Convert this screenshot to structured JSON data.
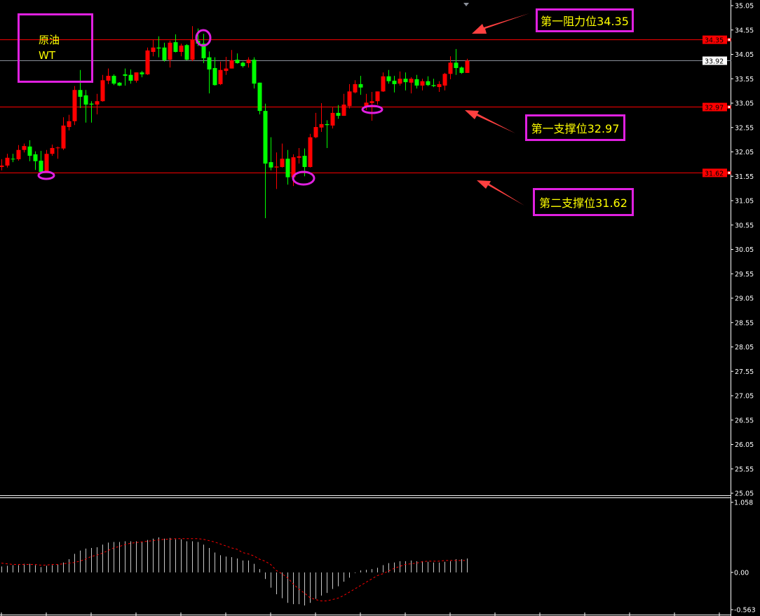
{
  "symbol_label": {
    "line1": "原油",
    "line2": "WT"
  },
  "colors": {
    "up": "#ff0000",
    "down": "#00ff00",
    "background": "#000000",
    "axis": "#ffffff",
    "level_line": "#ff0000",
    "current_line": "#8a8f99",
    "annotation_border": "#e020e0",
    "annotation_text": "#ffff00",
    "arrow": "#ff4040",
    "macd_hist": "#c8c8c8",
    "macd_signal": "#ff0000"
  },
  "annotations": [
    {
      "text": "第一阻力位34.35",
      "level": 34.35
    },
    {
      "text": "第一支撑位32.97",
      "level": 32.97
    },
    {
      "text": "第二支撑位31.62",
      "level": 31.62
    }
  ],
  "chart_data": [
    {
      "type": "candlestick",
      "ylim": [
        25.05,
        35.05
      ],
      "price_ticks": [
        "35.05",
        "34.55",
        "34.05",
        "33.55",
        "33.05",
        "32.55",
        "32.05",
        "31.55",
        "31.05",
        "30.55",
        "30.05",
        "29.55",
        "29.05",
        "28.55",
        "28.05",
        "27.55",
        "27.05",
        "26.55",
        "26.05",
        "25.55",
        "25.05"
      ],
      "current_price": {
        "value": 33.92,
        "label": "33.92"
      },
      "level_lines": [
        {
          "value": 34.35,
          "label": "34.35"
        },
        {
          "value": 32.97,
          "label": "32.97"
        },
        {
          "value": 31.62,
          "label": "31.62"
        }
      ],
      "ohlc_fields": [
        "open",
        "high",
        "low",
        "close"
      ],
      "candles": [
        [
          31.74,
          31.9,
          31.67,
          31.77
        ],
        [
          31.77,
          32.01,
          31.73,
          31.93
        ],
        [
          31.91,
          32.01,
          31.84,
          31.9
        ],
        [
          31.9,
          32.19,
          31.87,
          32.09
        ],
        [
          32.09,
          32.22,
          32.04,
          32.17
        ],
        [
          32.16,
          32.29,
          31.86,
          31.97
        ],
        [
          32.0,
          32.06,
          31.68,
          31.86
        ],
        [
          31.87,
          32.07,
          31.61,
          31.64
        ],
        [
          31.64,
          32.09,
          31.63,
          32.01
        ],
        [
          32.01,
          32.2,
          31.97,
          32.13
        ],
        [
          32.13,
          32.16,
          31.91,
          32.14
        ],
        [
          32.12,
          32.76,
          32.09,
          32.59
        ],
        [
          32.56,
          32.81,
          32.49,
          32.68
        ],
        [
          32.68,
          33.4,
          32.6,
          33.32
        ],
        [
          33.32,
          33.73,
          32.95,
          33.18
        ],
        [
          33.21,
          33.32,
          32.65,
          33.02
        ],
        [
          33.04,
          33.09,
          32.65,
          33.02
        ],
        [
          33.02,
          33.24,
          32.82,
          33.09
        ],
        [
          33.09,
          33.63,
          33.08,
          33.52
        ],
        [
          33.51,
          33.76,
          33.44,
          33.61
        ],
        [
          33.61,
          33.64,
          33.42,
          33.45
        ],
        [
          33.47,
          33.48,
          33.4,
          33.41
        ],
        [
          33.64,
          33.76,
          33.41,
          33.61
        ],
        [
          33.63,
          33.74,
          33.45,
          33.51
        ],
        [
          33.51,
          33.68,
          33.47,
          33.68
        ],
        [
          33.68,
          33.71,
          33.58,
          33.64
        ],
        [
          33.64,
          34.19,
          33.63,
          34.13
        ],
        [
          34.1,
          34.35,
          34.01,
          34.19
        ],
        [
          34.19,
          34.42,
          33.99,
          34.17
        ],
        [
          34.19,
          34.29,
          33.9,
          33.93
        ],
        [
          33.94,
          34.33,
          33.78,
          34.29
        ],
        [
          34.3,
          34.46,
          34.09,
          34.1
        ],
        [
          34.1,
          34.27,
          34.01,
          34.23
        ],
        [
          34.24,
          34.26,
          33.93,
          33.94
        ],
        [
          33.94,
          34.63,
          33.91,
          34.35
        ],
        [
          34.33,
          34.58,
          34.22,
          34.27
        ],
        [
          34.27,
          34.47,
          33.87,
          33.97
        ],
        [
          33.99,
          34.11,
          33.25,
          33.74
        ],
        [
          33.77,
          33.99,
          33.41,
          33.42
        ],
        [
          33.44,
          33.9,
          33.42,
          33.73
        ],
        [
          33.71,
          34.0,
          33.63,
          33.76
        ],
        [
          33.76,
          34.14,
          33.76,
          33.93
        ],
        [
          33.94,
          34.07,
          33.86,
          33.87
        ],
        [
          33.88,
          33.9,
          33.78,
          33.81
        ],
        [
          33.87,
          33.99,
          33.78,
          33.94
        ],
        [
          33.94,
          33.99,
          33.35,
          33.45
        ],
        [
          33.47,
          33.47,
          32.82,
          32.89
        ],
        [
          32.89,
          33.04,
          30.69,
          31.81
        ],
        [
          31.84,
          32.35,
          31.67,
          31.73
        ],
        [
          31.73,
          32.04,
          31.29,
          31.75
        ],
        [
          31.74,
          32.22,
          31.73,
          31.91
        ],
        [
          31.91,
          32.09,
          31.38,
          31.53
        ],
        [
          31.53,
          32.0,
          31.35,
          31.94
        ],
        [
          31.93,
          32.13,
          31.81,
          31.96
        ],
        [
          31.97,
          32.12,
          31.55,
          31.74
        ],
        [
          31.74,
          32.42,
          31.73,
          32.35
        ],
        [
          32.35,
          32.85,
          32.33,
          32.56
        ],
        [
          32.55,
          33.05,
          32.46,
          32.62
        ],
        [
          32.62,
          32.7,
          32.13,
          32.6
        ],
        [
          32.59,
          32.96,
          32.53,
          32.85
        ],
        [
          32.85,
          33.01,
          32.73,
          32.79
        ],
        [
          32.79,
          33.24,
          32.79,
          33.02
        ],
        [
          32.99,
          33.44,
          32.94,
          33.29
        ],
        [
          33.27,
          33.52,
          33.25,
          33.44
        ],
        [
          33.44,
          33.61,
          33.22,
          33.37
        ],
        [
          32.98,
          33.24,
          32.91,
          33.06
        ],
        [
          33.05,
          33.28,
          32.69,
          33.09
        ],
        [
          33.09,
          33.29,
          33.02,
          33.29
        ],
        [
          33.29,
          33.68,
          33.28,
          33.6
        ],
        [
          33.6,
          33.73,
          33.45,
          33.5
        ],
        [
          33.51,
          33.61,
          33.27,
          33.44
        ],
        [
          33.45,
          33.7,
          33.41,
          33.55
        ],
        [
          33.55,
          33.68,
          33.31,
          33.48
        ],
        [
          33.47,
          33.58,
          33.25,
          33.55
        ],
        [
          33.54,
          33.63,
          33.35,
          33.41
        ],
        [
          33.41,
          33.55,
          33.31,
          33.5
        ],
        [
          33.5,
          33.6,
          33.4,
          33.42
        ],
        [
          33.42,
          33.55,
          33.38,
          33.4
        ],
        [
          33.38,
          33.5,
          33.28,
          33.44
        ],
        [
          33.41,
          33.67,
          33.31,
          33.65
        ],
        [
          33.65,
          34.01,
          33.54,
          33.88
        ],
        [
          33.88,
          34.16,
          33.63,
          33.77
        ],
        [
          33.78,
          33.8,
          33.65,
          33.67
        ],
        [
          33.67,
          33.96,
          33.67,
          33.92
        ]
      ]
    },
    {
      "type": "bar+line",
      "ylim": [
        -0.563,
        1.058
      ],
      "ticks": [
        "1.058",
        "0.00",
        "-0.563"
      ],
      "histogram": [
        0.09,
        0.1,
        0.11,
        0.11,
        0.13,
        0.13,
        0.11,
        0.08,
        0.1,
        0.11,
        0.12,
        0.15,
        0.2,
        0.28,
        0.33,
        0.36,
        0.37,
        0.38,
        0.42,
        0.45,
        0.46,
        0.46,
        0.47,
        0.47,
        0.47,
        0.46,
        0.49,
        0.51,
        0.53,
        0.51,
        0.52,
        0.5,
        0.5,
        0.47,
        0.47,
        0.46,
        0.42,
        0.37,
        0.3,
        0.26,
        0.24,
        0.23,
        0.21,
        0.18,
        0.18,
        0.13,
        0.05,
        -0.1,
        -0.23,
        -0.33,
        -0.39,
        -0.46,
        -0.48,
        -0.48,
        -0.5,
        -0.46,
        -0.4,
        -0.35,
        -0.31,
        -0.25,
        -0.21,
        -0.14,
        -0.08,
        -0.01,
        0.03,
        0.04,
        0.05,
        0.07,
        0.11,
        0.14,
        0.15,
        0.17,
        0.17,
        0.18,
        0.17,
        0.17,
        0.16,
        0.15,
        0.15,
        0.16,
        0.17,
        0.2,
        0.2,
        0.21
      ],
      "signal": [
        0.14,
        0.13,
        0.12,
        0.12,
        0.12,
        0.12,
        0.12,
        0.11,
        0.11,
        0.12,
        0.12,
        0.13,
        0.14,
        0.15,
        0.17,
        0.2,
        0.24,
        0.26,
        0.29,
        0.33,
        0.37,
        0.39,
        0.42,
        0.44,
        0.45,
        0.46,
        0.47,
        0.48,
        0.49,
        0.5,
        0.5,
        0.51,
        0.51,
        0.51,
        0.51,
        0.51,
        0.5,
        0.48,
        0.46,
        0.43,
        0.4,
        0.37,
        0.35,
        0.3,
        0.28,
        0.25,
        0.2,
        0.17,
        0.12,
        0.03,
        -0.02,
        -0.08,
        -0.17,
        -0.25,
        -0.31,
        -0.38,
        -0.41,
        -0.43,
        -0.43,
        -0.41,
        -0.39,
        -0.35,
        -0.3,
        -0.25,
        -0.2,
        -0.15,
        -0.1,
        -0.05,
        -0.02,
        0.02,
        0.06,
        0.09,
        0.12,
        0.13,
        0.14,
        0.16,
        0.17,
        0.17,
        0.17,
        0.18,
        0.18,
        0.18,
        0.18,
        0.18
      ]
    }
  ]
}
